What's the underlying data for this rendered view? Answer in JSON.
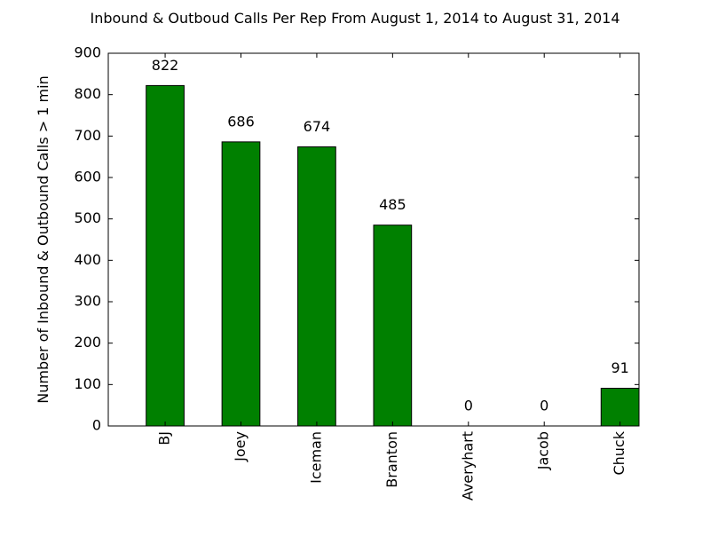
{
  "chart_data": {
    "type": "bar",
    "title": "Inbound & Outboud Calls Per Rep From August 1, 2014 to August 31, 2014",
    "xlabel": "",
    "ylabel": "Number of Inbound & Outbound Calls > 1 min",
    "categories": [
      "BJ",
      "Joey",
      "Iceman",
      "Branton",
      "Averyhart",
      "Jacob",
      "Chuck"
    ],
    "values": [
      822,
      686,
      674,
      485,
      0,
      0,
      91
    ],
    "data_labels": [
      "822",
      "686",
      "674",
      "485",
      "0",
      "0",
      "91"
    ],
    "ylim": [
      0,
      900
    ],
    "yticks": [
      0,
      100,
      200,
      300,
      400,
      500,
      600,
      700,
      800,
      900
    ],
    "bar_color": "#008000",
    "edge_color": "#000000",
    "grid": false,
    "legend": "none"
  }
}
